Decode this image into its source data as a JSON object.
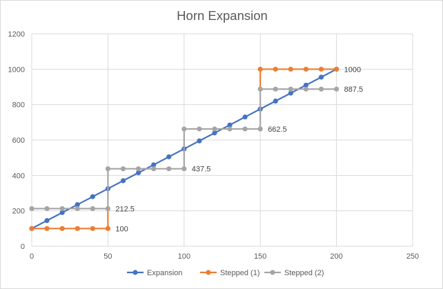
{
  "chart_data": {
    "type": "scatter",
    "title": "Horn Expansion",
    "xlim": [
      0,
      250
    ],
    "ylim": [
      0,
      1200
    ],
    "x_ticks": [
      0,
      50,
      100,
      150,
      200,
      250
    ],
    "y_ticks": [
      0,
      200,
      400,
      600,
      800,
      1000,
      1200
    ],
    "grid": true,
    "legend_position": "bottom",
    "series": [
      {
        "name": "Expansion",
        "color": "#4472c4",
        "line": "straight",
        "x": [
          0,
          10,
          20,
          30,
          40,
          50,
          60,
          70,
          80,
          90,
          100,
          110,
          120,
          130,
          140,
          150,
          160,
          170,
          180,
          190,
          200
        ],
        "y": [
          100,
          145,
          190,
          235,
          280,
          325,
          370,
          415,
          460,
          505,
          550,
          595,
          640,
          685,
          730,
          775,
          820,
          865,
          910,
          955,
          1000
        ]
      },
      {
        "name": "Stepped (1)",
        "color": "#ed7d31",
        "line": "straight",
        "x": [
          0,
          10,
          20,
          30,
          40,
          50,
          50,
          150,
          150,
          160,
          170,
          180,
          190,
          200
        ],
        "y": [
          100,
          100,
          100,
          100,
          100,
          100,
          100,
          1000,
          1000,
          1000,
          1000,
          1000,
          1000,
          1000
        ],
        "markers_skip": [
          6,
          7
        ],
        "path": [
          [
            0,
            100
          ],
          [
            50,
            100
          ],
          [
            50,
            0
          ],
          [
            50,
            100
          ]
        ]
      },
      {
        "name": "Stepped (2)",
        "color": "#a5a5a5",
        "line": "straight",
        "x": [
          0,
          10,
          20,
          30,
          40,
          50,
          50,
          60,
          70,
          80,
          90,
          100,
          100,
          110,
          120,
          130,
          140,
          150,
          150,
          160,
          170,
          180,
          190,
          200
        ],
        "y": [
          212.5,
          212.5,
          212.5,
          212.5,
          212.5,
          212.5,
          437.5,
          437.5,
          437.5,
          437.5,
          437.5,
          437.5,
          662.5,
          662.5,
          662.5,
          662.5,
          662.5,
          662.5,
          887.5,
          887.5,
          887.5,
          887.5,
          887.5,
          887.5
        ]
      }
    ],
    "data_labels": [
      {
        "x": 200,
        "y": 1000,
        "text": "1000"
      },
      {
        "x": 200,
        "y": 887.5,
        "text": "887.5"
      },
      {
        "x": 150,
        "y": 662.5,
        "text": "662.5"
      },
      {
        "x": 100,
        "y": 437.5,
        "text": "437.5"
      },
      {
        "x": 50,
        "y": 212.5,
        "text": "212.5"
      },
      {
        "x": 50,
        "y": 100,
        "text": "100"
      }
    ]
  }
}
